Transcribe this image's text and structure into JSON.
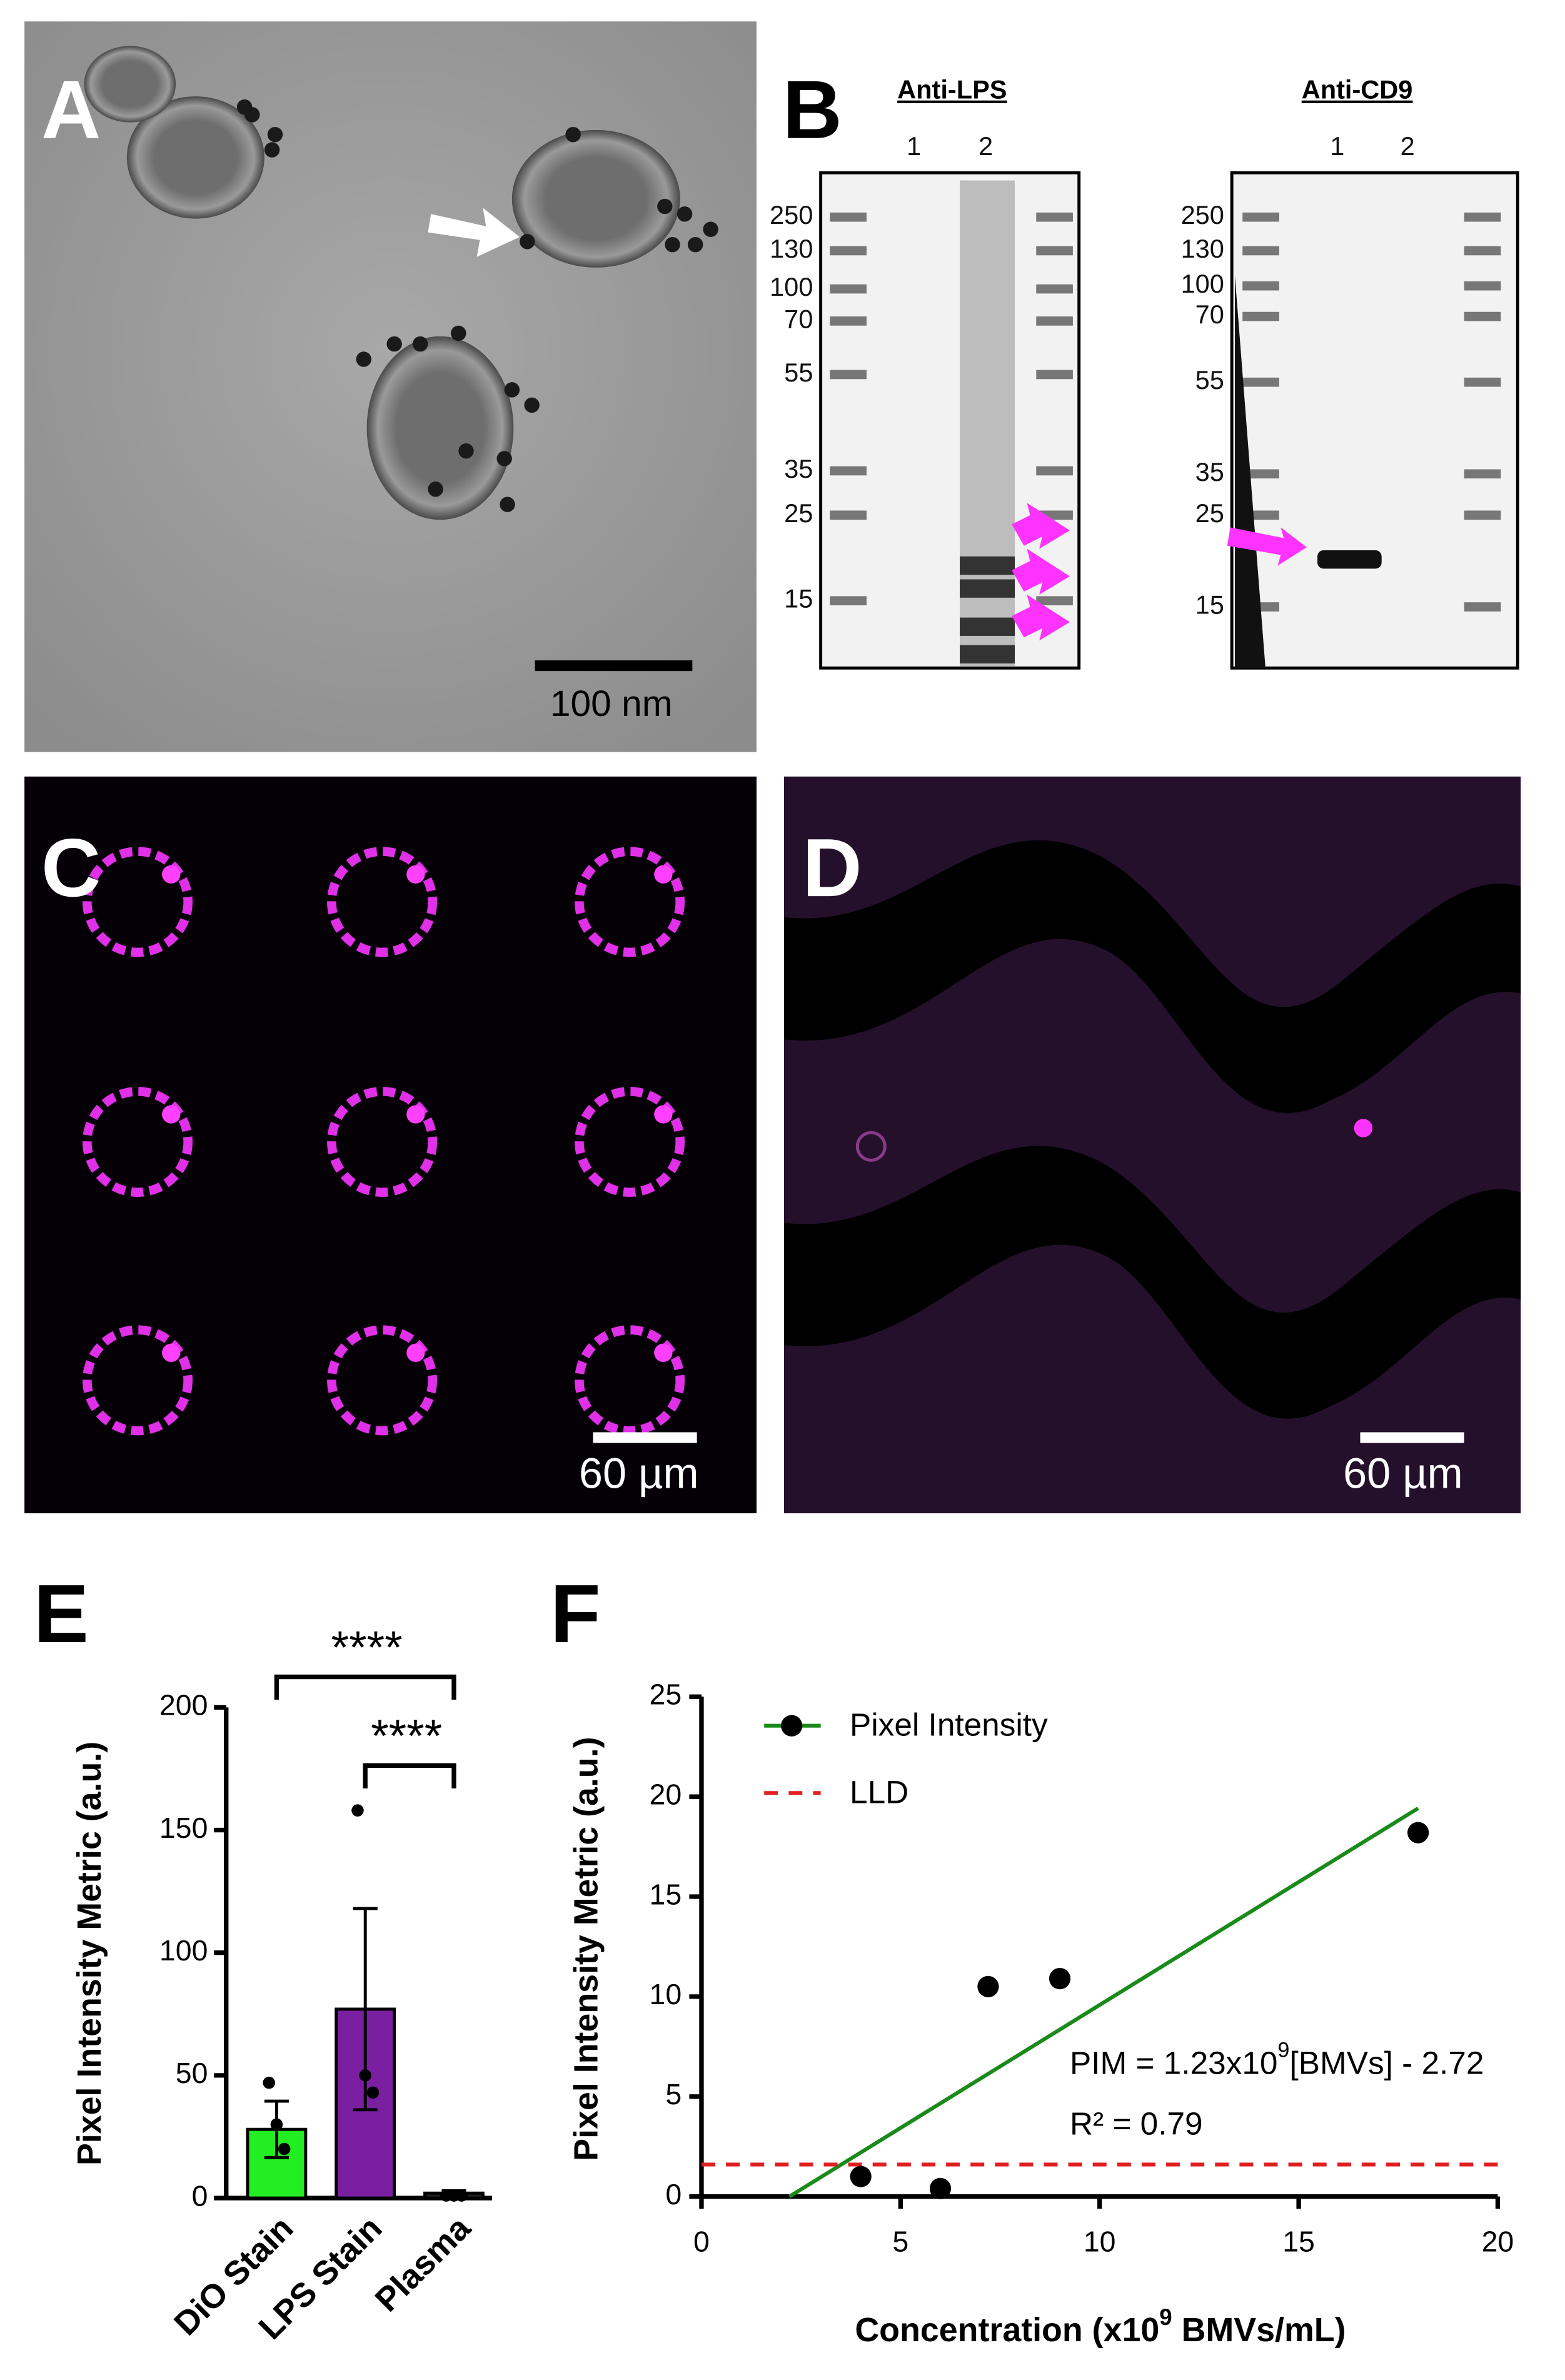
{
  "panels": {
    "A": {
      "label": "A",
      "scale": "100 nm"
    },
    "B": {
      "label": "B",
      "blots": [
        {
          "title": "Anti-LPS",
          "lanes": [
            "1",
            "2"
          ],
          "markers": [
            "250",
            "130",
            "100",
            "70",
            "55",
            "35",
            "25",
            "15"
          ]
        },
        {
          "title": "Anti-CD9",
          "lanes": [
            "1",
            "2"
          ],
          "markers": [
            "250",
            "130",
            "100",
            "70",
            "55",
            "35",
            "25",
            "15"
          ]
        }
      ]
    },
    "C": {
      "label": "C",
      "scale": "60 µm"
    },
    "D": {
      "label": "D",
      "scale": "60 µm"
    }
  },
  "chart_data": [
    {
      "type": "bar",
      "label": "E",
      "ylabel": "Pixel Intensity Metric (a.u.)",
      "categories": [
        "DiO Stain",
        "LPS Stain",
        "Plasma"
      ],
      "values": [
        28,
        77,
        2
      ],
      "errors": [
        11.5,
        41,
        1
      ],
      "points": [
        [
          47,
          30,
          20
        ],
        [
          158,
          50,
          43
        ],
        [
          1,
          1,
          1
        ]
      ],
      "colors": [
        "#22ee22",
        "#7b1fa2",
        "#222222"
      ],
      "ylim": [
        0,
        200
      ],
      "yticks": [
        0,
        50,
        100,
        150,
        200
      ],
      "annotations": [
        "****",
        "****"
      ]
    },
    {
      "type": "scatter",
      "label": "F",
      "xlabel": [
        "Concentration (x10",
        "9",
        " BMVs/mL)"
      ],
      "ylabel": "Pixel Intensity Metric (a.u.)",
      "series": [
        {
          "name": "Pixel Intensity",
          "color": "#1a8a1a",
          "x": [
            4,
            6,
            7.2,
            9,
            18
          ],
          "values": [
            1.0,
            0.4,
            10.5,
            10.9,
            18.2
          ],
          "fit": {
            "x": [
              2.21,
              18
            ],
            "values": [
              0,
              19.42
            ]
          }
        },
        {
          "name": "LLD",
          "color": "#e02020",
          "x": [
            0,
            20
          ],
          "values": [
            1.6,
            1.6
          ]
        }
      ],
      "xlim": [
        0,
        20
      ],
      "ylim": [
        0,
        25
      ],
      "xticks": [
        0,
        5,
        10,
        15,
        20
      ],
      "yticks": [
        0,
        5,
        10,
        15,
        20,
        25
      ],
      "annotations": [
        [
          "PIM = 1.23x10",
          "9",
          "[BMVs] - 2.72"
        ],
        "R² = 0.79"
      ]
    }
  ]
}
